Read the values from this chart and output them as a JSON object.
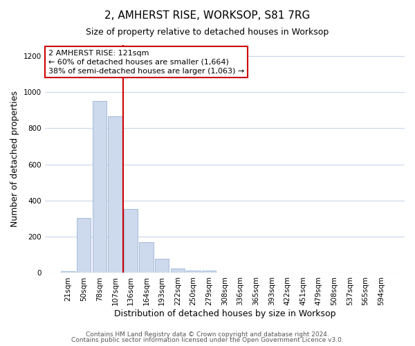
{
  "title": "2, AMHERST RISE, WORKSOP, S81 7RG",
  "subtitle": "Size of property relative to detached houses in Worksop",
  "xlabel": "Distribution of detached houses by size in Worksop",
  "ylabel": "Number of detached properties",
  "bar_labels": [
    "21sqm",
    "50sqm",
    "78sqm",
    "107sqm",
    "136sqm",
    "164sqm",
    "193sqm",
    "222sqm",
    "250sqm",
    "279sqm",
    "308sqm",
    "336sqm",
    "365sqm",
    "393sqm",
    "422sqm",
    "451sqm",
    "479sqm",
    "508sqm",
    "537sqm",
    "565sqm",
    "594sqm"
  ],
  "bar_values": [
    10,
    305,
    950,
    865,
    355,
    170,
    80,
    25,
    15,
    15,
    0,
    0,
    0,
    0,
    0,
    0,
    0,
    0,
    0,
    0,
    0
  ],
  "bar_color": "#cdd9ec",
  "bar_edge_color": "#9ab3d5",
  "vline_x_idx": 3.5,
  "vline_color": "#cc0000",
  "annotation_text": "2 AMHERST RISE: 121sqm\n← 60% of detached houses are smaller (1,664)\n38% of semi-detached houses are larger (1,063) →",
  "annotation_box_color": "white",
  "annotation_box_edge": "#cc0000",
  "ylim": [
    0,
    1260
  ],
  "yticks": [
    0,
    200,
    400,
    600,
    800,
    1000,
    1200
  ],
  "footer_line1": "Contains HM Land Registry data © Crown copyright and database right 2024.",
  "footer_line2": "Contains public sector information licensed under the Open Government Licence v3.0.",
  "background_color": "#ffffff",
  "grid_color": "#c8d5e8",
  "title_fontsize": 11,
  "subtitle_fontsize": 9,
  "axis_label_fontsize": 9,
  "tick_fontsize": 7.5,
  "annotation_fontsize": 8,
  "footer_fontsize": 6.5
}
